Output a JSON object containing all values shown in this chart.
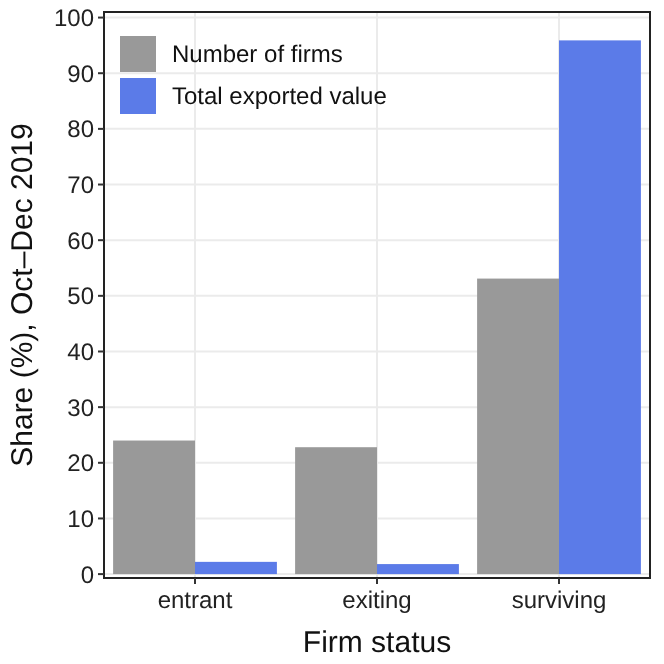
{
  "chart_data": {
    "type": "bar",
    "xlabel": "Firm status",
    "ylabel": "Share (%), Oct–Dec 2019",
    "categories": [
      "entrant",
      "exiting",
      "surviving"
    ],
    "series": [
      {
        "name": "Number of firms",
        "color": "#999999",
        "values": [
          24.0,
          22.8,
          53.1
        ]
      },
      {
        "name": "Total exported value",
        "color": "#5b7be8",
        "values": [
          2.2,
          1.8,
          95.9
        ]
      }
    ],
    "ylim": [
      -0.7,
      101
    ],
    "yticks": [
      0,
      10,
      20,
      30,
      40,
      50,
      60,
      70,
      80,
      90,
      100
    ],
    "grid": true,
    "legend": "top left"
  }
}
